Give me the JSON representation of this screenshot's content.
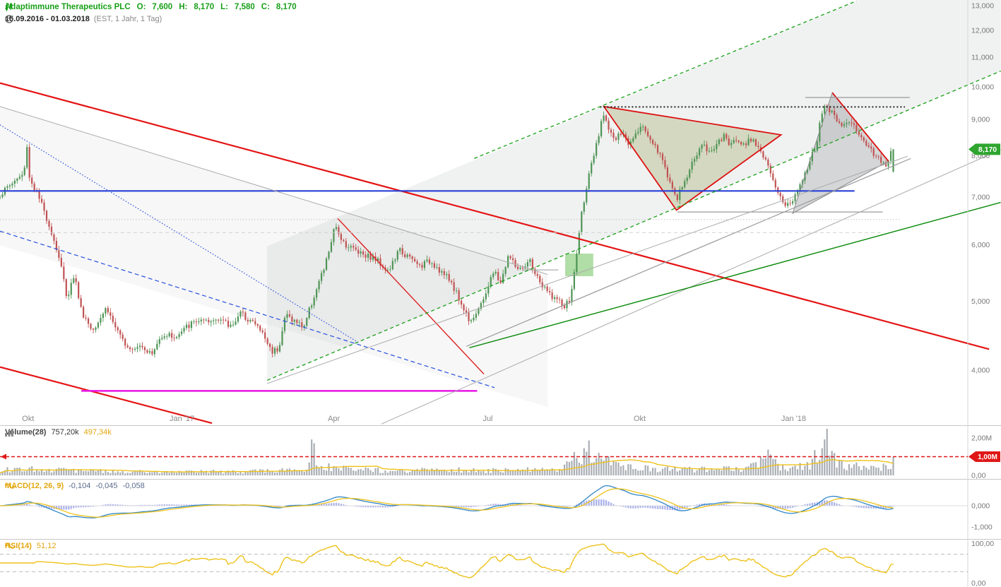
{
  "header": {
    "title": "Adaptimmune Therapeutics PLC",
    "ohlc": [
      {
        "k": "O:",
        "v": "7,600"
      },
      {
        "k": "H:",
        "v": "8,170"
      },
      {
        "k": "L:",
        "v": "7,580"
      },
      {
        "k": "C:",
        "v": "8,170"
      }
    ],
    "date_range": "15.09.2016 - 01.03.2018",
    "range_meta": "(EST, 1 Jahr, 1 Tag)"
  },
  "panels": {
    "volume": {
      "label": "Volume(28)",
      "v1": "757,20k",
      "v2": "497,34k",
      "ticks": [
        "2,00M",
        "0,00"
      ],
      "threshold_label": "1,00M"
    },
    "macd": {
      "label": "MACD(12, 26, 9)",
      "v1": "-0,104",
      "v2": "-0,045",
      "v3": "-0,058",
      "ticks": [
        "0,000",
        "-1,000"
      ]
    },
    "rsi": {
      "label": "RSI(14)",
      "v1": "51,12",
      "ticks": [
        "100,00",
        "0,00"
      ]
    }
  },
  "colors": {
    "title_green": "#18a018",
    "candle_up": "#4e9455",
    "candle_down": "#c05252",
    "volume_bar": "#9ba1a8",
    "yellow_line": "#eec21a",
    "macd_line": "#2f86c8",
    "macd_hist": "#7b86e0",
    "alert_red": "#e01717",
    "badge_green": "#2fa52f",
    "axis_text": "#777777",
    "x_text": "#8a8a8a"
  },
  "chart_data": {
    "type": "candlestick",
    "symbol": "Adaptimmune Therapeutics PLC",
    "period": "15.09.2016 - 01.03.2018",
    "timezone_interval": "EST, 1 Jahr, 1 Tag",
    "scale": "log",
    "seed": 1337,
    "n_candles": 365,
    "data_width_frac": 0.923,
    "last": {
      "o": 7.6,
      "h": 8.17,
      "l": 7.58,
      "c": 8.17
    },
    "last_label": "8,170",
    "price_axis": {
      "ticks": [
        13,
        12,
        11,
        10,
        9,
        8,
        7,
        6,
        5,
        4
      ]
    },
    "x_labels": [
      {
        "label": "Okt",
        "t": 0.029
      },
      {
        "label": "Jan '17",
        "t": 0.188
      },
      {
        "label": "Apr",
        "t": 0.345
      },
      {
        "label": "Jul",
        "t": 0.504
      },
      {
        "label": "Okt",
        "t": 0.661
      },
      {
        "label": "Jan '18",
        "t": 0.82
      }
    ],
    "price_path": [
      [
        0.0,
        7.05
      ],
      [
        0.012,
        7.3
      ],
      [
        0.027,
        7.55
      ],
      [
        0.03,
        8.35
      ],
      [
        0.033,
        7.45
      ],
      [
        0.043,
        7.0
      ],
      [
        0.055,
        6.4
      ],
      [
        0.067,
        5.7
      ],
      [
        0.075,
        5.05
      ],
      [
        0.083,
        5.45
      ],
      [
        0.091,
        4.85
      ],
      [
        0.103,
        4.55
      ],
      [
        0.119,
        4.9
      ],
      [
        0.134,
        4.45
      ],
      [
        0.146,
        4.3
      ],
      [
        0.158,
        4.35
      ],
      [
        0.17,
        4.2
      ],
      [
        0.182,
        4.5
      ],
      [
        0.198,
        4.45
      ],
      [
        0.209,
        4.6
      ],
      [
        0.221,
        4.7
      ],
      [
        0.233,
        4.65
      ],
      [
        0.245,
        4.75
      ],
      [
        0.257,
        4.6
      ],
      [
        0.269,
        4.8
      ],
      [
        0.281,
        4.7
      ],
      [
        0.292,
        4.55
      ],
      [
        0.304,
        4.25
      ],
      [
        0.312,
        4.3
      ],
      [
        0.32,
        4.8
      ],
      [
        0.328,
        4.7
      ],
      [
        0.34,
        4.6
      ],
      [
        0.352,
        5.1
      ],
      [
        0.364,
        5.6
      ],
      [
        0.375,
        6.35
      ],
      [
        0.387,
        6.0
      ],
      [
        0.399,
        5.9
      ],
      [
        0.411,
        5.8
      ],
      [
        0.423,
        5.7
      ],
      [
        0.435,
        5.5
      ],
      [
        0.447,
        5.9
      ],
      [
        0.458,
        5.75
      ],
      [
        0.47,
        5.6
      ],
      [
        0.482,
        5.7
      ],
      [
        0.494,
        5.5
      ],
      [
        0.506,
        5.3
      ],
      [
        0.518,
        4.9
      ],
      [
        0.526,
        4.7
      ],
      [
        0.538,
        4.9
      ],
      [
        0.545,
        5.2
      ],
      [
        0.553,
        5.5
      ],
      [
        0.561,
        5.3
      ],
      [
        0.569,
        5.8
      ],
      [
        0.577,
        5.6
      ],
      [
        0.585,
        5.5
      ],
      [
        0.593,
        5.7
      ],
      [
        0.601,
        5.4
      ],
      [
        0.609,
        5.2
      ],
      [
        0.617,
        5.1
      ],
      [
        0.625,
        5.0
      ],
      [
        0.632,
        4.9
      ],
      [
        0.639,
        5.05
      ],
      [
        0.644,
        5.6
      ],
      [
        0.65,
        6.5
      ],
      [
        0.656,
        7.2
      ],
      [
        0.664,
        7.9
      ],
      [
        0.67,
        8.5
      ],
      [
        0.676,
        9.2
      ],
      [
        0.681,
        8.8
      ],
      [
        0.688,
        8.4
      ],
      [
        0.696,
        8.6
      ],
      [
        0.704,
        8.3
      ],
      [
        0.712,
        8.7
      ],
      [
        0.719,
        8.8
      ],
      [
        0.727,
        8.5
      ],
      [
        0.735,
        8.2
      ],
      [
        0.743,
        7.8
      ],
      [
        0.751,
        7.3
      ],
      [
        0.757,
        6.9
      ],
      [
        0.763,
        7.2
      ],
      [
        0.771,
        7.6
      ],
      [
        0.779,
        8.0
      ],
      [
        0.786,
        8.3
      ],
      [
        0.794,
        8.1
      ],
      [
        0.802,
        8.3
      ],
      [
        0.81,
        8.5
      ],
      [
        0.818,
        8.3
      ],
      [
        0.826,
        8.45
      ],
      [
        0.834,
        8.3
      ],
      [
        0.842,
        8.5
      ],
      [
        0.85,
        8.2
      ],
      [
        0.858,
        7.8
      ],
      [
        0.866,
        7.3
      ],
      [
        0.874,
        7.0
      ],
      [
        0.881,
        6.8
      ],
      [
        0.889,
        6.95
      ],
      [
        0.897,
        7.4
      ],
      [
        0.905,
        7.8
      ],
      [
        0.913,
        8.2
      ],
      [
        0.919,
        9.0
      ],
      [
        0.924,
        9.45
      ],
      [
        0.93,
        9.2
      ],
      [
        0.938,
        9.0
      ],
      [
        0.946,
        8.8
      ],
      [
        0.953,
        8.95
      ],
      [
        0.96,
        8.6
      ],
      [
        0.968,
        8.4
      ],
      [
        0.976,
        8.1
      ],
      [
        0.984,
        7.95
      ],
      [
        0.992,
        7.8
      ],
      [
        1.0,
        8.17
      ]
    ],
    "volume_path": [
      [
        0.0,
        0.3
      ],
      [
        0.05,
        0.35
      ],
      [
        0.1,
        0.25
      ],
      [
        0.15,
        0.2
      ],
      [
        0.2,
        0.18
      ],
      [
        0.25,
        0.2
      ],
      [
        0.3,
        0.22
      ],
      [
        0.345,
        0.3
      ],
      [
        0.35,
        2.0
      ],
      [
        0.356,
        0.6
      ],
      [
        0.37,
        0.45
      ],
      [
        0.4,
        0.3
      ],
      [
        0.45,
        0.25
      ],
      [
        0.5,
        0.3
      ],
      [
        0.55,
        0.25
      ],
      [
        0.6,
        0.3
      ],
      [
        0.63,
        0.4
      ],
      [
        0.645,
        0.9
      ],
      [
        0.655,
        1.5
      ],
      [
        0.665,
        1.1
      ],
      [
        0.675,
        0.9
      ],
      [
        0.685,
        0.6
      ],
      [
        0.7,
        0.45
      ],
      [
        0.72,
        0.4
      ],
      [
        0.75,
        0.3
      ],
      [
        0.78,
        0.35
      ],
      [
        0.8,
        0.3
      ],
      [
        0.83,
        0.4
      ],
      [
        0.85,
        0.6
      ],
      [
        0.86,
        1.2
      ],
      [
        0.87,
        0.5
      ],
      [
        0.88,
        0.4
      ],
      [
        0.9,
        0.45
      ],
      [
        0.915,
        1.0
      ],
      [
        0.921,
        1.95
      ],
      [
        0.928,
        1.5
      ],
      [
        0.935,
        0.9
      ],
      [
        0.95,
        0.5
      ],
      [
        0.97,
        0.4
      ],
      [
        0.985,
        0.45
      ],
      [
        1.0,
        0.65
      ]
    ],
    "indicators": {
      "volume_ma_period": 28,
      "volume_last": "757,20k",
      "volume_ma_last": "497,34k",
      "volume_threshold": 1.0,
      "macd_params": [
        12,
        26,
        9
      ],
      "macd_last": [
        -0.104,
        -0.045,
        -0.058
      ],
      "rsi_period": 14,
      "rsi_last": 51.12,
      "rsi_levels": [
        70,
        30
      ]
    },
    "overlays": [
      {
        "name": "channel-fill",
        "type": "polygon",
        "points": [
          [
            0.276,
            5.97
          ],
          [
            0.276,
            3.87
          ],
          [
            1.034,
            10.52
          ],
          [
            1.034,
            16.0
          ]
        ],
        "fill": "#8a8f94",
        "opacity": 0.13
      },
      {
        "name": "left-band-fill",
        "type": "polygon",
        "points": [
          [
            0,
            9.38
          ],
          [
            0.566,
            5.45
          ],
          [
            0.566,
            3.55
          ],
          [
            0,
            5.99
          ]
        ],
        "fill": "#8a8f94",
        "opacity": 0.07
      },
      {
        "name": "green-box",
        "type": "polygon",
        "points": [
          [
            0.584,
            5.83
          ],
          [
            0.613,
            5.83
          ],
          [
            0.613,
            5.42
          ],
          [
            0.584,
            5.42
          ]
        ],
        "fill": "#52b43c",
        "opacity": 0.45
      },
      {
        "name": "triangle-1",
        "type": "polygon",
        "points": [
          [
            0.624,
            9.38
          ],
          [
            0.699,
            6.71
          ],
          [
            0.807,
            8.56
          ]
        ],
        "fill": "#97a45e",
        "opacity": 0.32,
        "stroke": "#dd1111",
        "width": 1.8
      },
      {
        "name": "triangle-2",
        "type": "polygon",
        "points": [
          [
            0.819,
            6.64
          ],
          [
            0.86,
            9.81
          ],
          [
            0.918,
            7.86
          ]
        ],
        "fill": "#7d8387",
        "opacity": 0.33,
        "stroke": "#888888",
        "width": 1
      },
      {
        "name": "triangle-2-red-edge",
        "type": "polyline",
        "points": [
          [
            0.86,
            9.81
          ],
          [
            0.918,
            7.86
          ]
        ],
        "stroke": "#dd1111",
        "width": 1.8
      },
      {
        "name": "red-trend-upper",
        "type": "polyline",
        "points": [
          [
            0,
            10.12
          ],
          [
            1.022,
            4.28
          ]
        ],
        "stroke": "#e51414",
        "width": 2.2
      },
      {
        "name": "red-trend-lower",
        "type": "polyline",
        "points": [
          [
            0,
            4.04
          ],
          [
            0.219,
            3.37
          ]
        ],
        "stroke": "#e51414",
        "width": 2.2
      },
      {
        "name": "red-steep",
        "type": "polyline",
        "points": [
          [
            0.349,
            6.53
          ],
          [
            0.5,
            3.95
          ]
        ],
        "stroke": "#dd2222",
        "width": 1.4
      },
      {
        "name": "blue-horizontal",
        "type": "polyline",
        "points": [
          [
            0,
            7.14
          ],
          [
            0.883,
            7.14
          ]
        ],
        "stroke": "#2840d8",
        "width": 2.2
      },
      {
        "name": "blue-dotted",
        "type": "polyline",
        "points": [
          [
            0,
            8.84
          ],
          [
            0.372,
            4.36
          ]
        ],
        "stroke": "#2550e0",
        "width": 1.2,
        "dash": "1.5,2.5"
      },
      {
        "name": "blue-dashed",
        "type": "polyline",
        "points": [
          [
            0,
            6.27
          ],
          [
            0.511,
            3.78
          ]
        ],
        "stroke": "#2550e0",
        "width": 1.2,
        "dash": "6,4"
      },
      {
        "name": "magenta-support",
        "type": "polyline",
        "points": [
          [
            0.084,
            3.74
          ],
          [
            0.493,
            3.74
          ]
        ],
        "stroke": "#e816e8",
        "width": 2.5
      },
      {
        "name": "black-dotted-resistance",
        "type": "polyline",
        "points": [
          [
            0.62,
            9.37
          ],
          [
            0.935,
            9.37
          ]
        ],
        "stroke": "#222222",
        "width": 2,
        "dash": "2,3"
      },
      {
        "name": "gray-h-top",
        "type": "polyline",
        "points": [
          [
            0.832,
            9.66
          ],
          [
            0.94,
            9.66
          ]
        ],
        "stroke": "#999999",
        "width": 1.2
      },
      {
        "name": "gray-h-mid",
        "type": "polyline",
        "points": [
          [
            0.7,
            6.67
          ],
          [
            0.912,
            6.67
          ]
        ],
        "stroke": "#999999",
        "width": 1.2
      },
      {
        "name": "gray-h-left-tick",
        "type": "polyline",
        "points": [
          [
            0.54,
            5.53
          ],
          [
            0.577,
            5.53
          ]
        ],
        "stroke": "#999999",
        "width": 1
      },
      {
        "name": "gray-desc-left",
        "type": "polyline",
        "points": [
          [
            0,
            9.38
          ],
          [
            0.566,
            5.45
          ]
        ],
        "stroke": "#aaaaaa",
        "width": 1
      },
      {
        "name": "gray-asc-1",
        "type": "polyline",
        "points": [
          [
            0.482,
            4.32
          ],
          [
            0.941,
            7.93
          ]
        ],
        "stroke": "#999999",
        "width": 1.2
      },
      {
        "name": "gray-asc-2",
        "type": "polyline",
        "points": [
          [
            0.276,
            3.83
          ],
          [
            0.938,
            7.99
          ]
        ],
        "stroke": "#aaaaaa",
        "width": 1
      },
      {
        "name": "gray-asc-3",
        "type": "polyline",
        "points": [
          [
            0.394,
            3.36
          ],
          [
            1.034,
            8.16
          ]
        ],
        "stroke": "#aaaaaa",
        "width": 1
      },
      {
        "name": "green-dashed-upper",
        "type": "polyline",
        "points": [
          [
            0.49,
            7.93
          ],
          [
            0.885,
            13.2
          ]
        ],
        "stroke": "#18a018",
        "width": 1.3,
        "dash": "5,4"
      },
      {
        "name": "green-dashed-lower",
        "type": "polyline",
        "points": [
          [
            0.276,
            3.87
          ],
          [
            1.034,
            10.52
          ]
        ],
        "stroke": "#18a018",
        "width": 1.3,
        "dash": "5,4"
      },
      {
        "name": "green-solid",
        "type": "polyline",
        "points": [
          [
            0.485,
            4.3
          ],
          [
            1.034,
            6.88
          ]
        ],
        "stroke": "#0e8c0e",
        "width": 1.5
      },
      {
        "name": "dotted-h-1",
        "type": "polyline",
        "points": [
          [
            0,
            6.51
          ],
          [
            0.93,
            6.51
          ]
        ],
        "stroke": "#c3c3c3",
        "width": 1,
        "dash": "1.5,2.5"
      },
      {
        "name": "dotted-h-2",
        "type": "polyline",
        "points": [
          [
            0,
            6.24
          ],
          [
            0.91,
            6.24
          ]
        ],
        "stroke": "#cfcfcf",
        "width": 1,
        "dash": "5,4"
      }
    ]
  }
}
